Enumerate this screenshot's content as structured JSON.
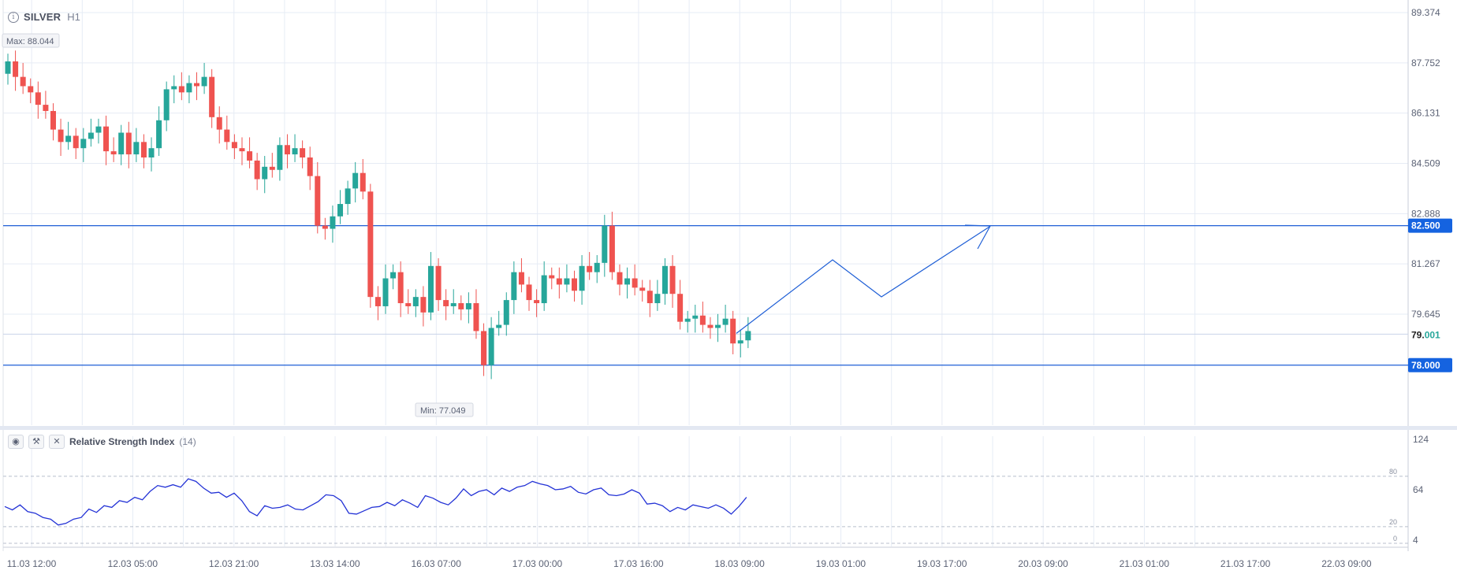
{
  "header": {
    "symbol": "SILVER",
    "timeframe": "H1",
    "info_icon": "info-icon"
  },
  "max_label": "Max: 88.044",
  "min_label": "Min: 77.049",
  "rsi_panel": {
    "name": "Relative Strength Index",
    "period": "(14)",
    "tools": [
      "eye-icon",
      "wrench-icon",
      "close-icon"
    ]
  },
  "colors": {
    "up": "#26a69a",
    "down": "#ef5350",
    "line": "#1f5fd6",
    "badge": "#1563e0",
    "rsi": "#2433d6"
  },
  "chart_data": [
    {
      "type": "candlestick",
      "ylim": [
        76.0,
        89.374
      ],
      "y_ticks": [
        "89.374",
        "87.752",
        "86.131",
        "84.509",
        "82.888",
        "81.267",
        "79.645"
      ],
      "x_ticks": [
        "11.03 12:00",
        "12.03 05:00",
        "12.03 21:00",
        "13.03 14:00",
        "16.03 07:00",
        "17.03 00:00",
        "17.03 16:00",
        "18.03 09:00",
        "19.03 01:00",
        "19.03 17:00",
        "20.03 09:00",
        "21.03 01:00",
        "21.03 17:00",
        "22.03 09:00"
      ],
      "last_price": "79.001",
      "horizontal_levels": [
        {
          "value": 82.5,
          "label": "82.500"
        },
        {
          "value": 78.0,
          "label": "78.000"
        }
      ],
      "projection_path": [
        [
          79.0,
          79.0
        ],
        [
          82.0,
          81.4
        ],
        [
          83.3,
          80.3
        ],
        [
          86.0,
          82.5
        ]
      ],
      "close_prices": [
        87.8,
        87.3,
        87.0,
        86.8,
        86.4,
        86.2,
        85.6,
        85.2,
        85.4,
        85.0,
        85.3,
        85.5,
        85.7,
        84.9,
        84.8,
        85.5,
        84.8,
        85.2,
        84.7,
        85.0,
        85.9,
        86.9,
        87.0,
        86.8,
        87.1,
        87.0,
        87.3,
        86.0,
        85.6,
        85.2,
        85.0,
        84.9,
        84.6,
        84.0,
        84.4,
        84.3,
        85.1,
        84.8,
        85.0,
        84.7,
        84.1,
        82.5,
        82.4,
        82.8,
        83.2,
        83.7,
        84.2,
        83.6,
        80.2,
        79.9,
        80.8,
        81.0,
        80.0,
        79.9,
        80.2,
        79.7,
        81.2,
        80.1,
        79.9,
        80.0,
        79.8,
        80.0,
        79.1,
        78.0,
        79.2,
        79.3,
        80.1,
        81.0,
        80.6,
        80.1,
        80.0,
        80.9,
        80.8,
        80.6,
        80.8,
        80.4,
        81.2,
        81.0,
        81.3,
        82.5,
        81.0,
        80.6,
        80.8,
        80.5,
        80.4,
        80.0,
        80.3,
        81.2,
        80.3,
        79.4,
        79.5,
        79.6,
        79.3,
        79.2,
        79.3,
        79.5,
        78.7,
        78.8,
        79.1
      ]
    },
    {
      "type": "line",
      "series": [
        {
          "name": "Relative Strength Index",
          "values": [
            44,
            40,
            46,
            38,
            36,
            31,
            29,
            22,
            24,
            29,
            31,
            41,
            37,
            45,
            43,
            51,
            49,
            55,
            52,
            62,
            69,
            67,
            70,
            67,
            77,
            74,
            66,
            60,
            61,
            55,
            60,
            51,
            38,
            33,
            45,
            42,
            43,
            46,
            41,
            40,
            45,
            50,
            58,
            57,
            51,
            36,
            35,
            39,
            43,
            44,
            49,
            45,
            52,
            48,
            43,
            57,
            54,
            49,
            46,
            54,
            65,
            57,
            62,
            64,
            58,
            66,
            62,
            67,
            69,
            74,
            71,
            69,
            64,
            65,
            68,
            61,
            59,
            64,
            66,
            58,
            57,
            59,
            64,
            60,
            47,
            48,
            45,
            38,
            43,
            40,
            46,
            44,
            42,
            46,
            42,
            35,
            44,
            55
          ]
        }
      ],
      "ylim": [
        4,
        124
      ],
      "y_ticks": [
        "124",
        "64",
        "4"
      ],
      "levels": [
        {
          "value": 80,
          "label": "80"
        },
        {
          "value": 20,
          "label": "20"
        },
        {
          "value": 0,
          "label": "0"
        }
      ]
    }
  ]
}
